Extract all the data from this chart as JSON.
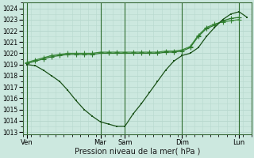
{
  "xlabel": "Pression niveau de la mer( hPa )",
  "bg_color": "#cce8df",
  "grid_color": "#b8d8ce",
  "line_color1": "#1a5218",
  "line_color2": "#2d7a2d",
  "line_color3": "#3a8a3a",
  "ylim": [
    1012.8,
    1024.5
  ],
  "xlim": [
    0,
    28
  ],
  "yticks": [
    1013,
    1014,
    1015,
    1016,
    1017,
    1018,
    1019,
    1020,
    1021,
    1022,
    1023,
    1024
  ],
  "day_labels": [
    "Ven",
    "Mar",
    "Sam",
    "Dim",
    "Lun"
  ],
  "day_positions": [
    0.5,
    9.5,
    12.5,
    19.5,
    26.5
  ],
  "vline_positions": [
    0.5,
    9.5,
    12.5,
    19.5,
    26.5
  ],
  "series1_x": [
    0.5,
    1.5,
    2.5,
    3.5,
    4.5,
    5.5,
    6.5,
    7.5,
    8.5,
    9.5,
    10.5,
    11.5,
    12.5,
    13.5,
    14.5,
    15.5,
    16.5,
    17.5,
    18.5,
    19.5,
    20.5,
    21.5,
    22.5,
    23.5,
    24.5,
    25.5,
    26.5,
    27.5
  ],
  "series1_y": [
    1019.0,
    1018.9,
    1018.5,
    1018.0,
    1017.5,
    1016.7,
    1015.8,
    1015.0,
    1014.4,
    1013.9,
    1013.7,
    1013.5,
    1013.5,
    1014.6,
    1015.5,
    1016.5,
    1017.5,
    1018.5,
    1019.3,
    1019.8,
    1020.0,
    1020.5,
    1021.5,
    1022.3,
    1023.0,
    1023.5,
    1023.7,
    1023.2
  ],
  "series2_x": [
    0.5,
    1.5,
    2.5,
    3.5,
    4.5,
    5.5,
    6.5,
    7.5,
    8.5,
    9.5,
    10.5,
    11.5,
    12.5,
    13.5,
    14.5,
    15.5,
    16.5,
    17.5,
    18.5,
    19.5,
    20.5,
    21.5,
    22.5,
    23.5,
    24.5,
    25.5,
    26.5
  ],
  "series2_y": [
    1019.1,
    1019.3,
    1019.5,
    1019.7,
    1019.8,
    1019.9,
    1019.9,
    1019.9,
    1019.9,
    1020.0,
    1020.0,
    1020.0,
    1020.0,
    1020.0,
    1020.0,
    1020.0,
    1020.0,
    1020.1,
    1020.1,
    1020.2,
    1020.5,
    1021.5,
    1022.2,
    1022.5,
    1022.9,
    1023.1,
    1023.2
  ],
  "series3_x": [
    0.5,
    1.5,
    2.5,
    3.5,
    4.5,
    5.5,
    6.5,
    7.5,
    8.5,
    9.5,
    10.5,
    11.5,
    12.5,
    13.5,
    14.5,
    15.5,
    16.5,
    17.5,
    18.5,
    19.5,
    20.5,
    21.5,
    22.5,
    23.5,
    24.5,
    25.5,
    26.5
  ],
  "series3_y": [
    1019.2,
    1019.4,
    1019.6,
    1019.8,
    1019.9,
    1020.0,
    1020.0,
    1020.0,
    1020.0,
    1020.1,
    1020.1,
    1020.1,
    1020.1,
    1020.1,
    1020.1,
    1020.1,
    1020.1,
    1020.2,
    1020.2,
    1020.3,
    1020.6,
    1021.6,
    1022.3,
    1022.6,
    1022.8,
    1022.9,
    1023.0
  ]
}
